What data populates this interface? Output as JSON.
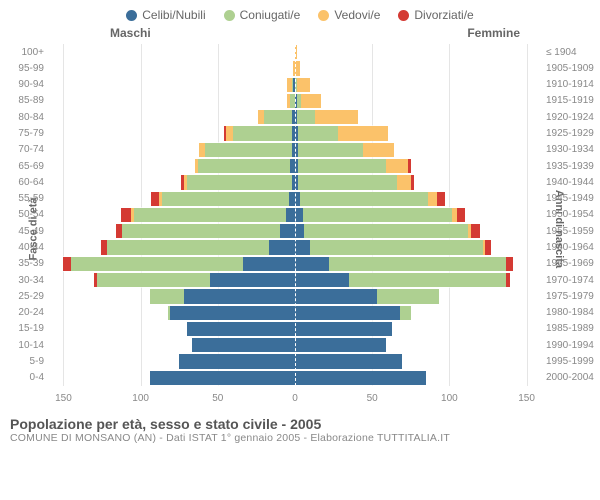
{
  "legend": [
    {
      "label": "Celibi/Nubili",
      "color": "#3b6e9a"
    },
    {
      "label": "Coniugati/e",
      "color": "#aed091"
    },
    {
      "label": "Vedovi/e",
      "color": "#fbc26a"
    },
    {
      "label": "Divorziati/e",
      "color": "#d43a33"
    }
  ],
  "headers": {
    "male": "Maschi",
    "female": "Femmine"
  },
  "axes": {
    "left_title": "Fasce di età",
    "right_title": "Anni di nascita"
  },
  "x_max": 160,
  "x_ticks": [
    {
      "v": -150,
      "label": "150"
    },
    {
      "v": -100,
      "label": "100"
    },
    {
      "v": -50,
      "label": "50"
    },
    {
      "v": 0,
      "label": "0"
    },
    {
      "v": 50,
      "label": "50"
    },
    {
      "v": 100,
      "label": "100"
    },
    {
      "v": 150,
      "label": "150"
    }
  ],
  "colors": {
    "single": "#3b6e9a",
    "married": "#aed091",
    "widowed": "#fbc26a",
    "divorced": "#d43a33",
    "grid": "#e5e5e5",
    "centerline": "#ffffff"
  },
  "rows": [
    {
      "age": "100+",
      "birth": "≤ 1904",
      "m": [
        0,
        0,
        0,
        0
      ],
      "f": [
        0,
        0,
        1,
        0
      ]
    },
    {
      "age": "95-99",
      "birth": "1905-1909",
      "m": [
        0,
        0,
        1,
        0
      ],
      "f": [
        0,
        0,
        3,
        0
      ]
    },
    {
      "age": "90-94",
      "birth": "1910-1914",
      "m": [
        1,
        1,
        3,
        0
      ],
      "f": [
        0,
        1,
        9,
        0
      ]
    },
    {
      "age": "85-89",
      "birth": "1915-1919",
      "m": [
        0,
        3,
        2,
        0
      ],
      "f": [
        1,
        3,
        13,
        0
      ]
    },
    {
      "age": "80-84",
      "birth": "1920-1924",
      "m": [
        2,
        18,
        4,
        0
      ],
      "f": [
        1,
        12,
        28,
        0
      ]
    },
    {
      "age": "75-79",
      "birth": "1925-1929",
      "m": [
        2,
        38,
        5,
        1
      ],
      "f": [
        2,
        26,
        32,
        0
      ]
    },
    {
      "age": "70-74",
      "birth": "1930-1934",
      "m": [
        2,
        56,
        4,
        0
      ],
      "f": [
        2,
        42,
        20,
        0
      ]
    },
    {
      "age": "65-69",
      "birth": "1935-1939",
      "m": [
        3,
        60,
        2,
        0
      ],
      "f": [
        2,
        57,
        14,
        2
      ]
    },
    {
      "age": "60-64",
      "birth": "1940-1944",
      "m": [
        2,
        68,
        2,
        2
      ],
      "f": [
        2,
        64,
        9,
        2
      ]
    },
    {
      "age": "55-59",
      "birth": "1945-1949",
      "m": [
        4,
        82,
        2,
        5
      ],
      "f": [
        3,
        83,
        6,
        5
      ]
    },
    {
      "age": "50-54",
      "birth": "1950-1954",
      "m": [
        6,
        98,
        2,
        7
      ],
      "f": [
        5,
        97,
        3,
        5
      ]
    },
    {
      "age": "45-49",
      "birth": "1955-1959",
      "m": [
        10,
        102,
        0,
        4
      ],
      "f": [
        6,
        106,
        2,
        6
      ]
    },
    {
      "age": "40-44",
      "birth": "1960-1964",
      "m": [
        17,
        105,
        0,
        4
      ],
      "f": [
        10,
        112,
        1,
        4
      ]
    },
    {
      "age": "35-39",
      "birth": "1965-1969",
      "m": [
        34,
        111,
        0,
        5
      ],
      "f": [
        22,
        115,
        0,
        4
      ]
    },
    {
      "age": "30-34",
      "birth": "1970-1974",
      "m": [
        55,
        73,
        0,
        2
      ],
      "f": [
        35,
        102,
        0,
        2
      ]
    },
    {
      "age": "25-29",
      "birth": "1975-1979",
      "m": [
        72,
        22,
        0,
        0
      ],
      "f": [
        53,
        40,
        0,
        0
      ]
    },
    {
      "age": "20-24",
      "birth": "1980-1984",
      "m": [
        81,
        1,
        0,
        0
      ],
      "f": [
        68,
        7,
        0,
        0
      ]
    },
    {
      "age": "15-19",
      "birth": "1985-1989",
      "m": [
        70,
        0,
        0,
        0
      ],
      "f": [
        63,
        0,
        0,
        0
      ]
    },
    {
      "age": "10-14",
      "birth": "1990-1994",
      "m": [
        67,
        0,
        0,
        0
      ],
      "f": [
        59,
        0,
        0,
        0
      ]
    },
    {
      "age": "5-9",
      "birth": "1995-1999",
      "m": [
        75,
        0,
        0,
        0
      ],
      "f": [
        69,
        0,
        0,
        0
      ]
    },
    {
      "age": "0-4",
      "birth": "2000-2004",
      "m": [
        94,
        0,
        0,
        0
      ],
      "f": [
        85,
        0,
        0,
        0
      ]
    }
  ],
  "footer": {
    "title": "Popolazione per età, sesso e stato civile - 2005",
    "subtitle": "COMUNE DI MONSANO (AN) - Dati ISTAT 1° gennaio 2005 - Elaborazione TUTTITALIA.IT"
  }
}
